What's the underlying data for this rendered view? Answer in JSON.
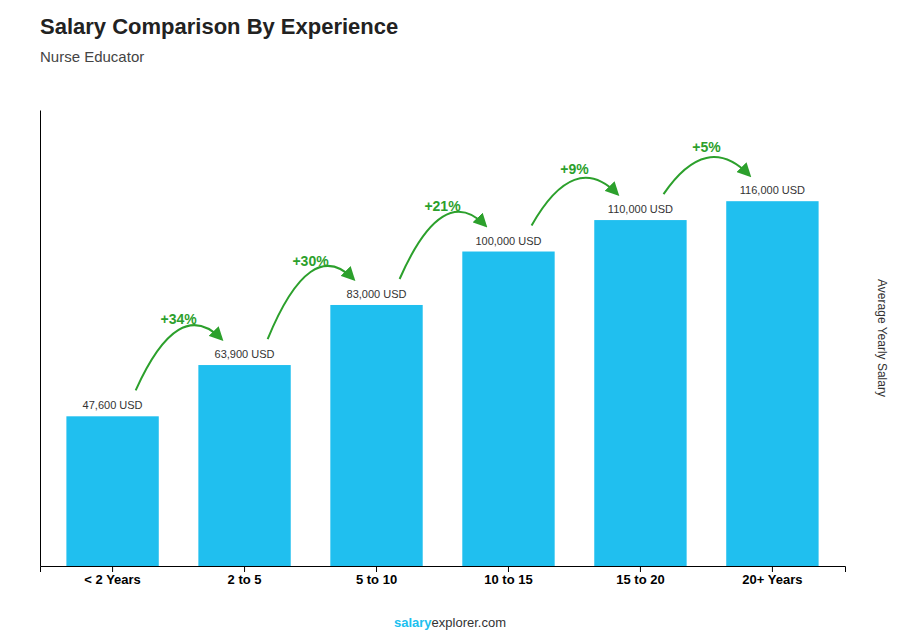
{
  "chart_data": {
    "type": "bar",
    "title": "Salary Comparison By Experience",
    "subtitle": "Nurse Educator",
    "ylabel": "Average Yearly Salary",
    "footer": [
      "salary",
      "explorer.com"
    ],
    "categories": [
      "< 2 Years",
      "2 to 5",
      "5 to 10",
      "10 to 15",
      "15 to 20",
      "20+ Years"
    ],
    "values": [
      47600,
      63900,
      83000,
      100000,
      110000,
      116000
    ],
    "value_labels": [
      "47,600 USD",
      "63,900 USD",
      "83,000 USD",
      "100,000 USD",
      "110,000 USD",
      "116,000 USD"
    ],
    "data_labels": true,
    "annotations": [
      "+34%",
      "+30%",
      "+21%",
      "+9%",
      "+5%"
    ],
    "color": "#20BFEF",
    "ylim": [
      0,
      145000
    ],
    "grid": false,
    "tick_labels": "x"
  }
}
